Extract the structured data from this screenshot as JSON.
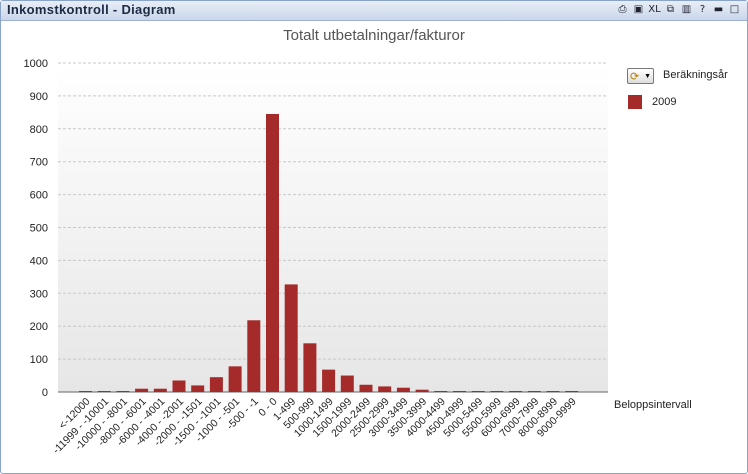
{
  "window": {
    "title": "Inkomstkontroll - Diagram",
    "toolbar_icons": [
      "print-icon",
      "clipboard-icon",
      "excel-icon",
      "copy-icon",
      "chart-type-icon",
      "help-icon",
      "minimize-icon",
      "maximize-icon"
    ],
    "toolbar_labels": [
      "⎙",
      "▣",
      "XL",
      "⧉",
      "▥",
      "?",
      "▬",
      "□"
    ]
  },
  "legend": {
    "title": "Beräkningsår",
    "button_icon": "cycle-group-icon",
    "items": [
      {
        "label": "2009",
        "color": "#a52a2a"
      }
    ]
  },
  "chart_data": {
    "type": "bar",
    "title": "Totalt utbetalningar/fakturor",
    "xlabel": "Beloppsintervall",
    "ylabel": "",
    "ylim": [
      0,
      1000
    ],
    "yticks": [
      0,
      100,
      200,
      300,
      400,
      500,
      600,
      700,
      800,
      900,
      1000
    ],
    "grid": true,
    "legend_position": "top-right",
    "categories": [
      "<-12000",
      "-11999 - -10001",
      "-10000 - -8001",
      "-8000 - -6001",
      "-6000 - -4001",
      "-4000 - -2001",
      "-2000 - -1501",
      "-1500 - -1001",
      "-1000 - -501",
      "-500 - -1",
      "0 - 0",
      "1-499",
      "500-999",
      "1000-1499",
      "1500-1999",
      "2000-2499",
      "2500-2999",
      "3000-3499",
      "3500-3999",
      "4000-4499",
      "4500-4999",
      "5000-5499",
      "5500-5999",
      "6000-6999",
      "7000-7999",
      "8000-8999",
      "9000-9999"
    ],
    "series": [
      {
        "name": "2009",
        "color": "#a52a2a",
        "values": [
          3,
          3,
          3,
          10,
          10,
          35,
          20,
          45,
          78,
          218,
          845,
          327,
          148,
          68,
          50,
          22,
          17,
          13,
          7,
          3,
          3,
          3,
          3,
          3,
          3,
          3,
          3
        ]
      }
    ]
  }
}
